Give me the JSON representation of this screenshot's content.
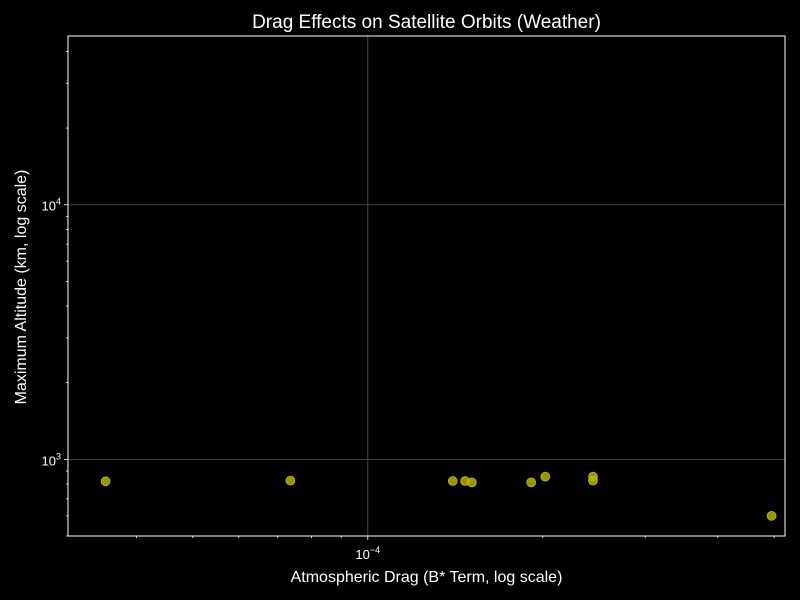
{
  "chart_data": {
    "type": "scatter",
    "title": "Drag Effects on Satellite Orbits (Weather)",
    "xlabel": "Atmospheric Drag (B* Term, log scale)",
    "ylabel": "Maximum Altitude (km, log scale)",
    "xscale": "log",
    "yscale": "log",
    "xlim": [
      3.05e-05,
      0.000522
    ],
    "ylim": [
      500,
      46000
    ],
    "x_major_ticks": [
      {
        "value": 0.0001,
        "label": "10",
        "exponent": "−4"
      }
    ],
    "y_major_ticks": [
      {
        "value": 1000,
        "label": "10",
        "exponent": "3"
      },
      {
        "value": 10000,
        "label": "10",
        "exponent": "4"
      }
    ],
    "grid": true,
    "legend": "none",
    "colors": {
      "background": "#000000",
      "axes": "#ffffff",
      "grid": "#555555",
      "marker": "#b5b000",
      "marker_edge": "#e0dc3a"
    },
    "series": [
      {
        "points": [
          {
            "x": 3.54e-05,
            "y": 820
          },
          {
            "x": 7.36e-05,
            "y": 825
          },
          {
            "x": 0.00014,
            "y": 822
          },
          {
            "x": 0.000147,
            "y": 822
          },
          {
            "x": 0.000151,
            "y": 812
          },
          {
            "x": 0.000191,
            "y": 812
          },
          {
            "x": 0.000202,
            "y": 855
          },
          {
            "x": 0.000244,
            "y": 855
          },
          {
            "x": 0.000244,
            "y": 825
          },
          {
            "x": 0.000495,
            "y": 600
          }
        ]
      }
    ]
  }
}
